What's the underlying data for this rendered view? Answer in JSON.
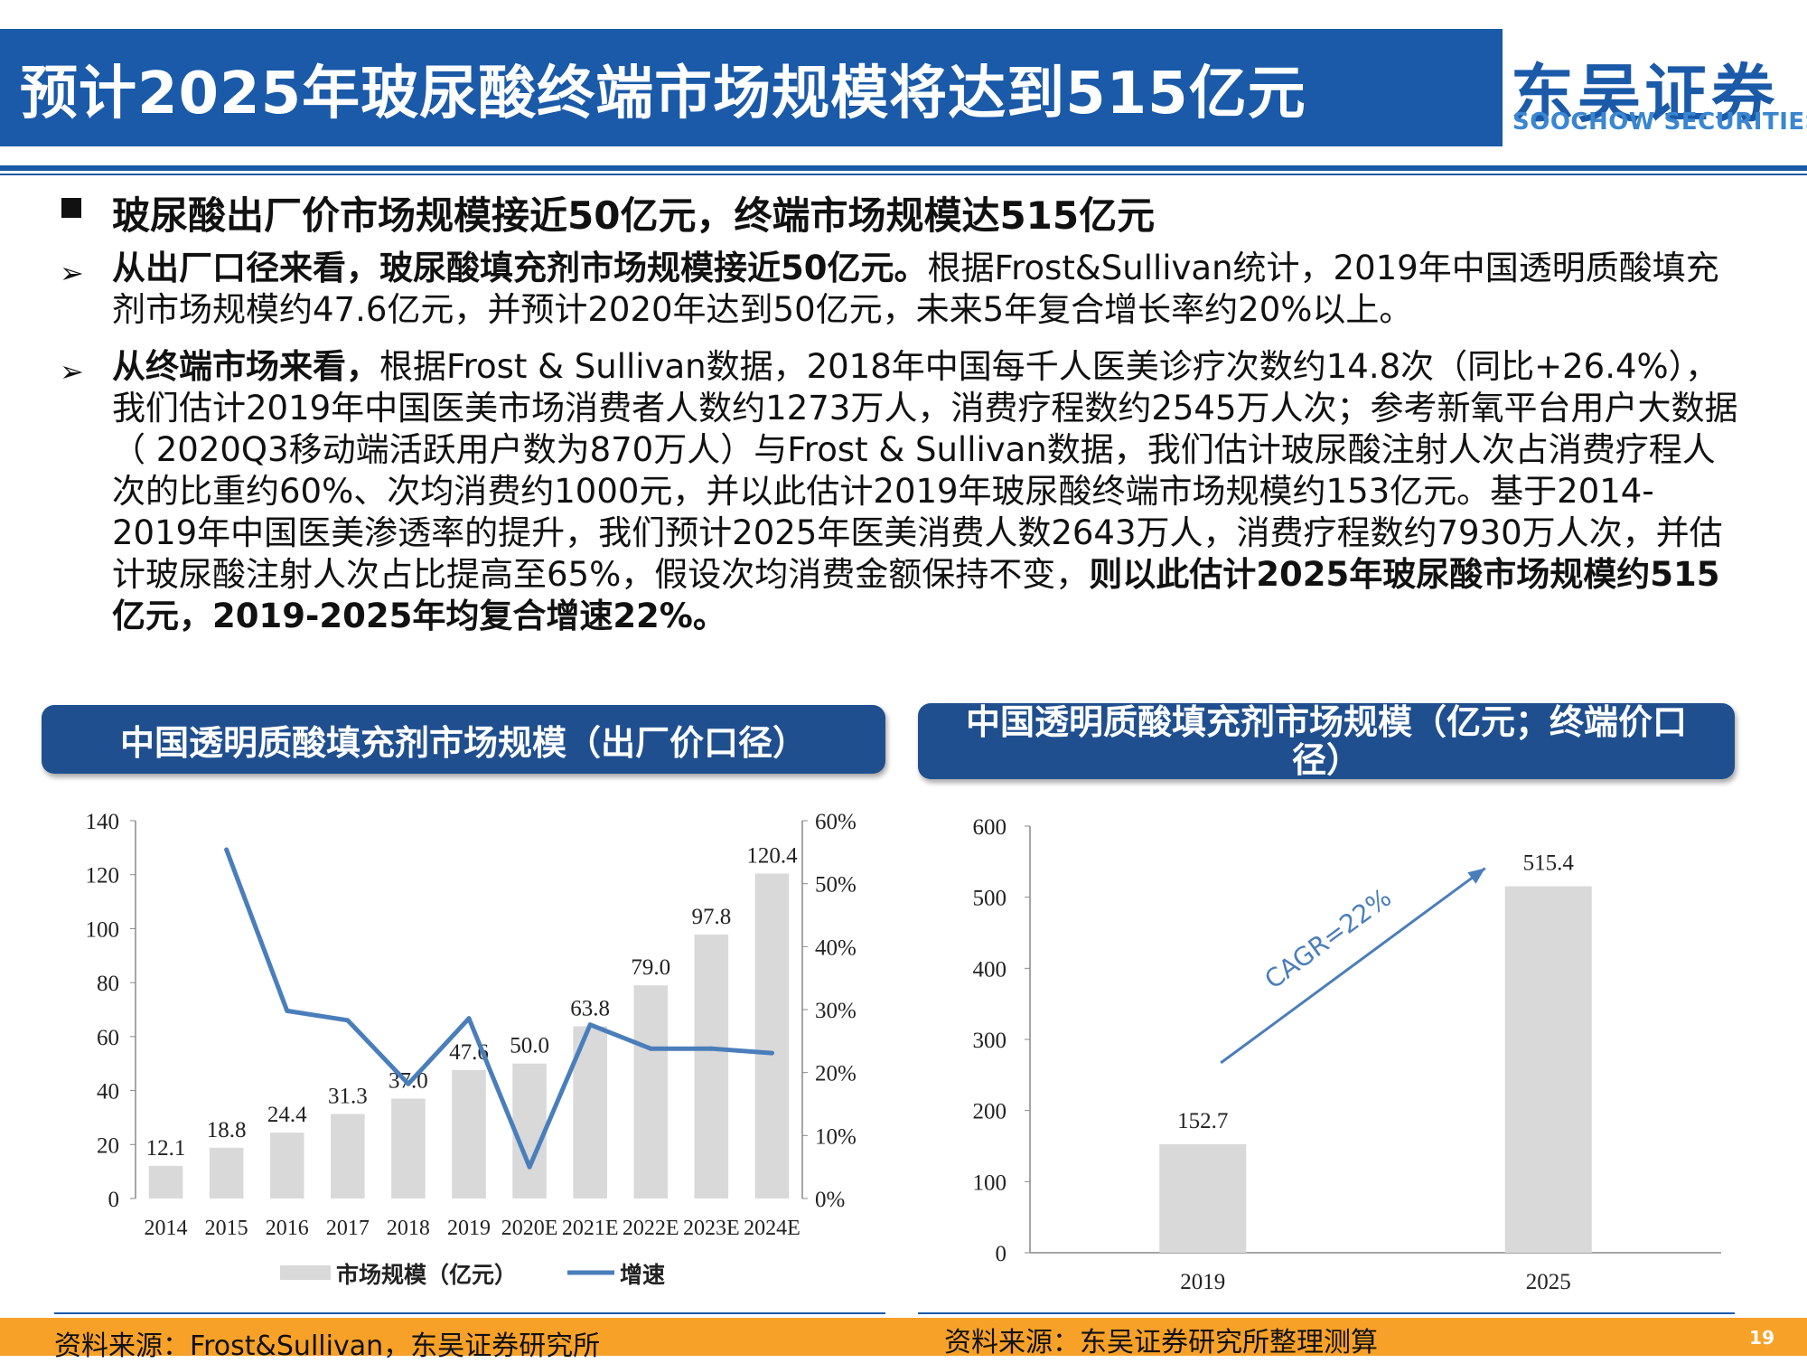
{
  "header": {
    "title": "预计2025年玻尿酸终端市场规模将达到515亿元",
    "logo_cn": "东吴证券",
    "logo_en": "SOOCHOW SECURITIES",
    "colors": {
      "title_bar": "#1a5aa8",
      "logo": "#1a5aa8",
      "footer": "#f7a128"
    }
  },
  "body": {
    "heading": "玻尿酸出厂价市场规模接近50亿元，终端市场规模达515亿元",
    "bullets": [
      {
        "bold": "从出厂口径来看，玻尿酸填充剂市场规模接近50亿元。",
        "text": "根据Frost&Sullivan统计，2019年中国透明质酸填充剂市场规模约47.6亿元，并预计2020年达到50亿元，未来5年复合增长率约20%以上。"
      },
      {
        "bold": "从终端市场来看，",
        "text": "根据Frost & Sullivan数据，2018年中国每千人医美诊疗次数约14.8次（同比+26.4%），我们估计2019年中国医美市场消费者人数约1273万人，消费疗程数约2545万人次；参考新氧平台用户大数据（ 2020Q3移动端活跃用户数为870万人）与Frost & Sullivan数据，我们估计玻尿酸注射人次占消费疗程人次的比重约60%、次均消费约1000元，并以此估计2019年玻尿酸终端市场规模约153亿元。基于2014-2019年中国医美渗透率的提升，我们预计2025年医美消费人数2643万人，消费疗程数约7930万人次，并估计玻尿酸注射人次占比提高至65%，假设次均消费金额保持不变，",
        "bold_tail": "则以此估计2025年玻尿酸市场规模约515亿元，2019-2025年均复合增速22%。"
      }
    ]
  },
  "panels": [
    {
      "header": "中国透明质酸填充剂市场规模（出厂价口径）",
      "source": "资料来源：Frost&Sullivan，东吴证券研究所"
    },
    {
      "header": "中国透明质酸填充剂市场规模（亿元；终端价口径）",
      "source": "资料来源：东吴证券研究所整理测算"
    }
  ],
  "page_number": "19",
  "chart_data": [
    {
      "type": "bar",
      "categories": [
        "2014",
        "2015",
        "2016",
        "2017",
        "2018",
        "2019",
        "2020E",
        "2021E",
        "2022E",
        "2023E",
        "2024E"
      ],
      "series": [
        {
          "name": "市场规模（亿元）",
          "type": "bar",
          "axis": "left",
          "color": "#d9d9d9",
          "values": [
            12.1,
            18.8,
            24.4,
            31.3,
            37.0,
            47.6,
            50.0,
            63.8,
            79.0,
            97.8,
            120.4
          ],
          "labels": [
            "12.1",
            "18.8",
            "24.4",
            "31.3",
            "37.0",
            "47.6",
            "50.0",
            "63.8",
            "79.0",
            "97.8",
            "120.4"
          ]
        },
        {
          "name": "增速",
          "type": "line",
          "axis": "right",
          "color": "#4a7ebb",
          "values": [
            null,
            0.554,
            0.298,
            0.283,
            0.182,
            0.286,
            0.05,
            0.276,
            0.238,
            0.238,
            0.231
          ]
        }
      ],
      "ylim": [
        0,
        140
      ],
      "yticks": [
        "0",
        "20",
        "40",
        "60",
        "80",
        "100",
        "120",
        "140"
      ],
      "y2lim": [
        0,
        0.6
      ],
      "y2ticks": [
        "0%",
        "10%",
        "20%",
        "30%",
        "40%",
        "50%",
        "60%"
      ],
      "legend": "bottom"
    },
    {
      "type": "bar",
      "categories": [
        "2019",
        "2025"
      ],
      "values": [
        152.7,
        515.4
      ],
      "labels": [
        "152.7",
        "515.4"
      ],
      "color": "#d9d9d9",
      "ylim": [
        0,
        600
      ],
      "yticks": [
        "0",
        "100",
        "200",
        "300",
        "400",
        "500",
        "600"
      ],
      "annotation": "CAGR=22%"
    }
  ]
}
